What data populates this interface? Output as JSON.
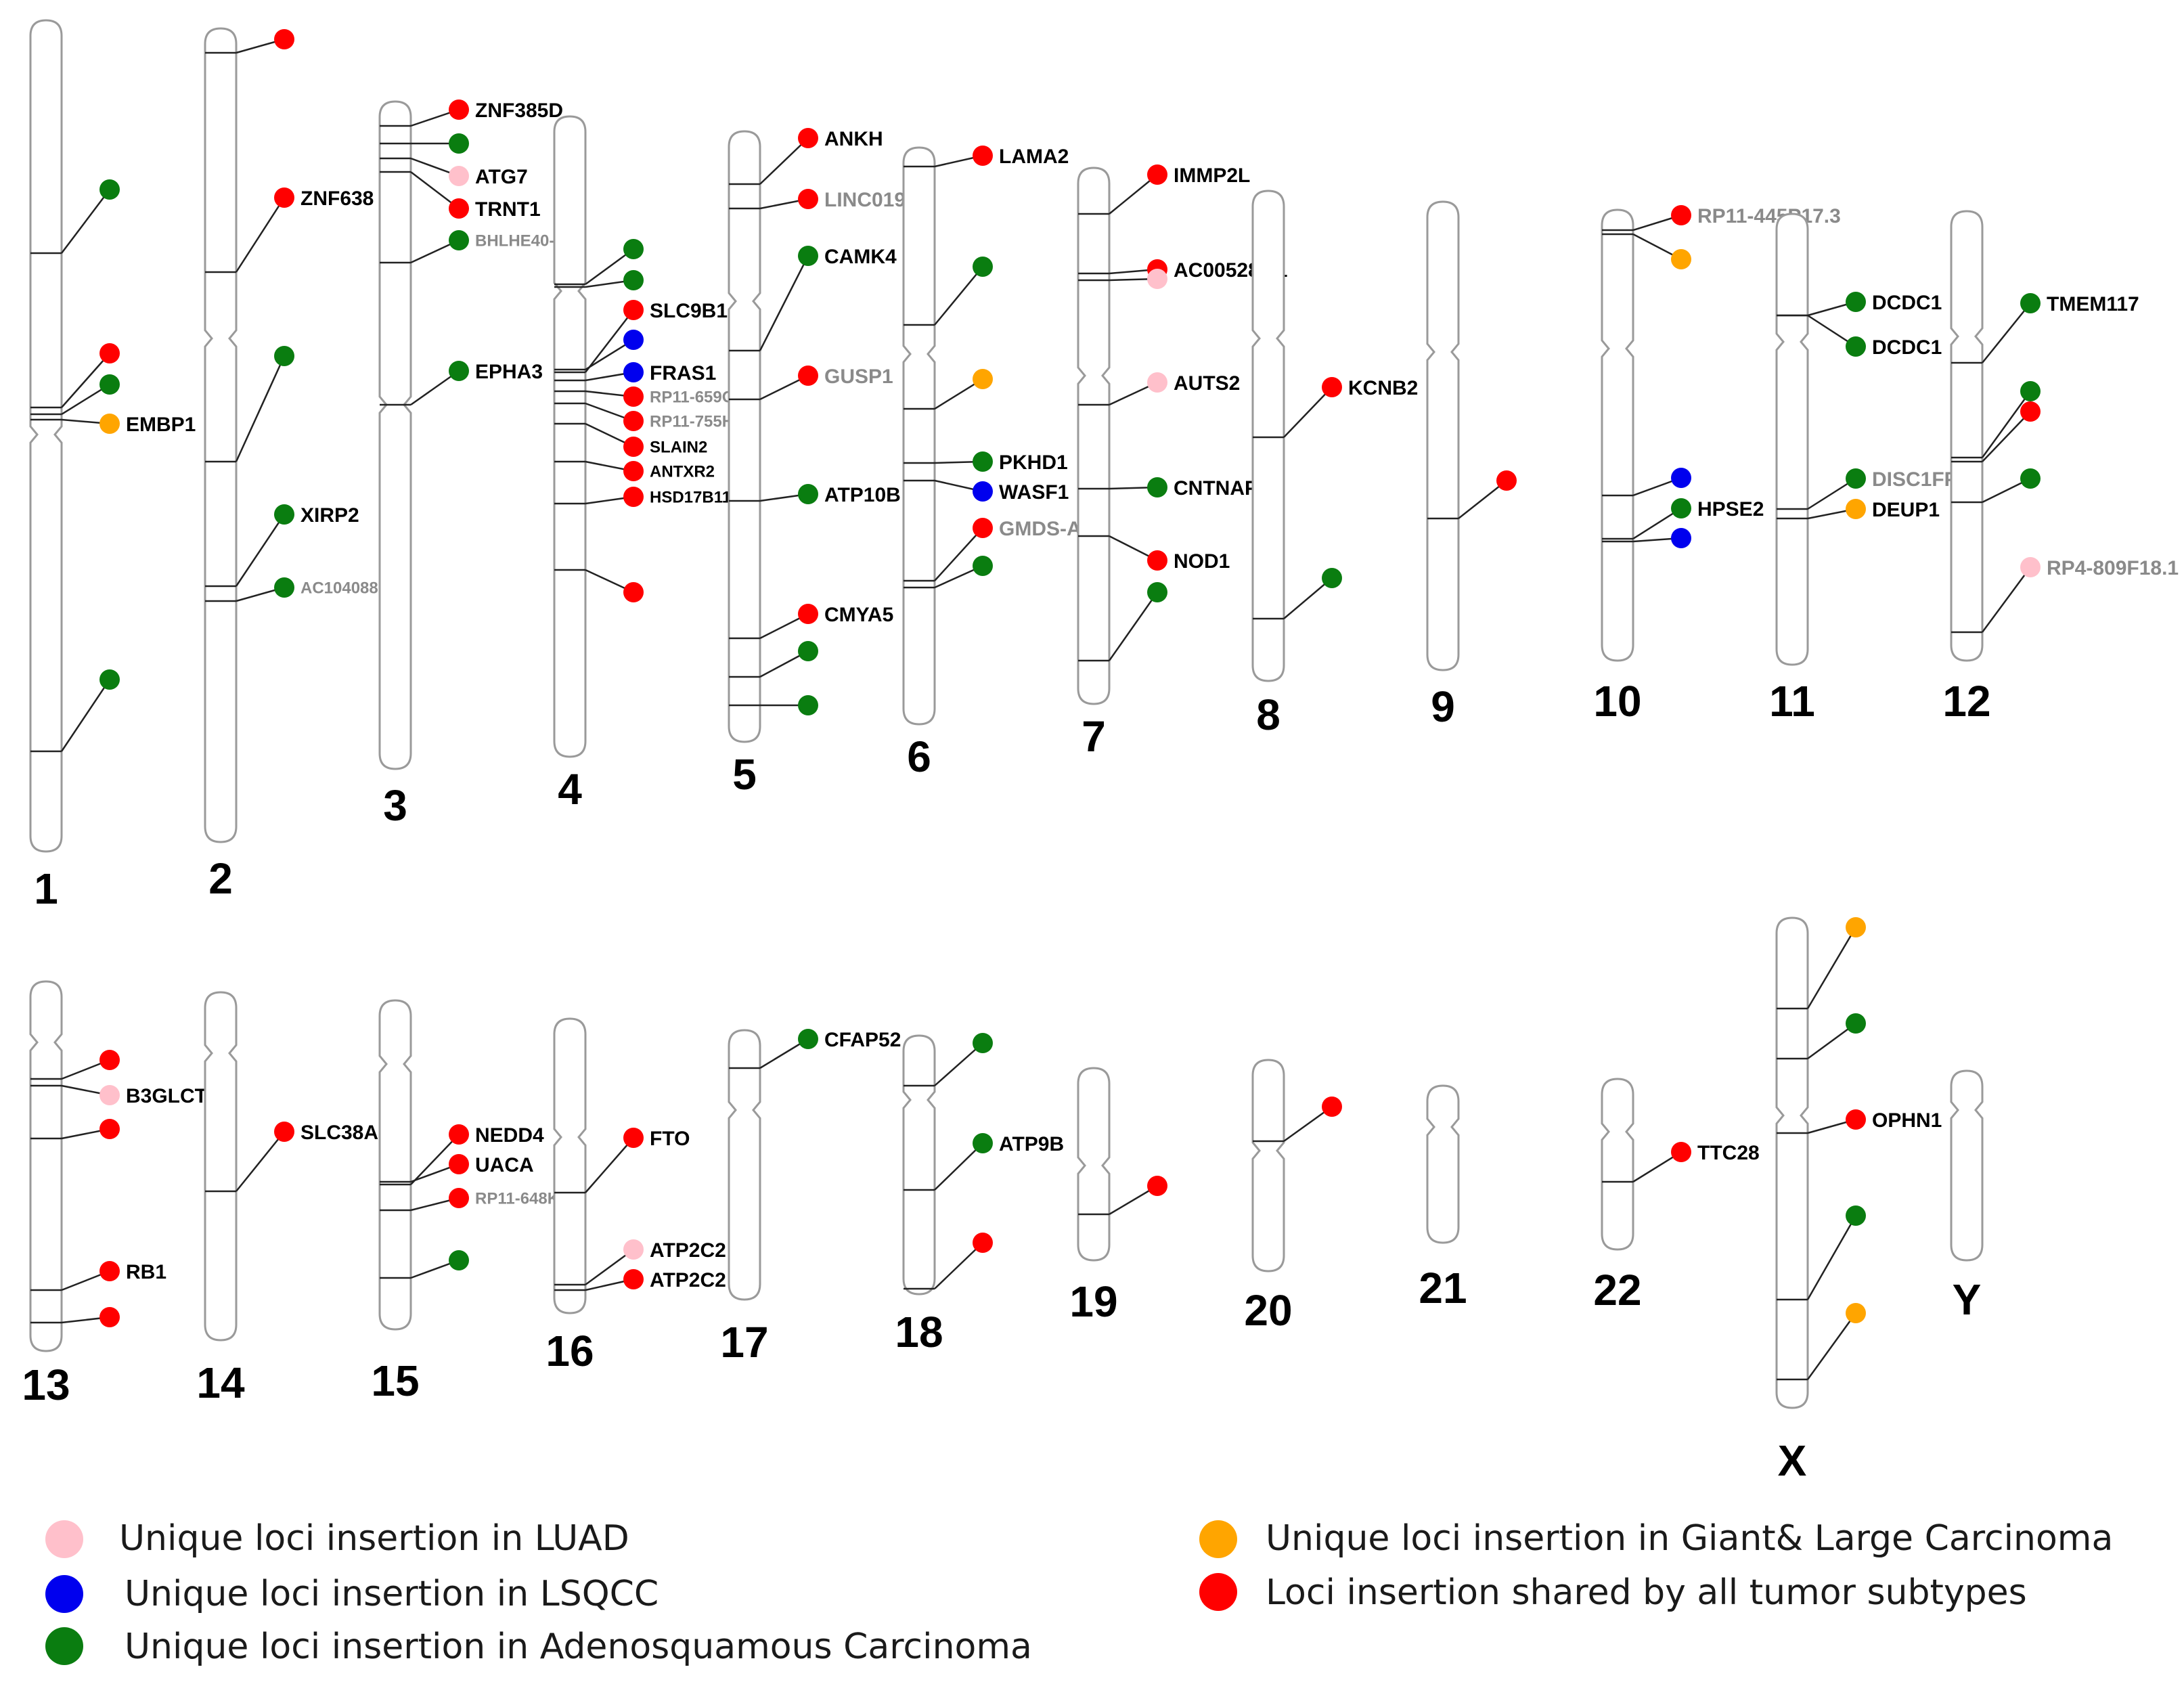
{
  "colors": {
    "luad": "#ffc0cb",
    "lsqcc": "#0000ee",
    "adeno": "#0a7d10",
    "giant": "#ffa500",
    "shared": "#ff0000",
    "outline": "#9a9a9a",
    "leader": "#222222",
    "label_dark": "#000000",
    "label_gray": "#8a8a8a"
  },
  "legend": [
    {
      "key": "luad",
      "label": "Unique loci insertion in LUAD"
    },
    {
      "key": "lsqcc",
      "label": "Unique loci insertion in LSQCC"
    },
    {
      "key": "adeno",
      "label": "Unique loci insertion in Adenosquamous Carcinoma"
    },
    {
      "key": "giant",
      "label": "Unique loci insertion in Giant& Large Carcinoma"
    },
    {
      "key": "shared",
      "label": "Loci insertion shared by all tumor subtypes"
    }
  ],
  "chromosomes": [
    {
      "name": "1",
      "loci": [
        {
          "type": "adeno",
          "label": ""
        },
        {
          "type": "shared",
          "label": ""
        },
        {
          "type": "adeno",
          "label": ""
        },
        {
          "type": "giant",
          "label": "EMBP1"
        },
        {
          "type": "adeno",
          "label": ""
        }
      ]
    },
    {
      "name": "2",
      "loci": [
        {
          "type": "shared",
          "label": ""
        },
        {
          "type": "shared",
          "label": "ZNF638"
        },
        {
          "type": "adeno",
          "label": ""
        },
        {
          "type": "adeno",
          "label": "XIRP2"
        },
        {
          "type": "adeno",
          "label": "AC104088.1"
        }
      ]
    },
    {
      "name": "3",
      "loci": [
        {
          "type": "shared",
          "label": "ZNF385D"
        },
        {
          "type": "adeno",
          "label": ""
        },
        {
          "type": "luad",
          "label": "ATG7"
        },
        {
          "type": "shared",
          "label": "TRNT1"
        },
        {
          "type": "adeno",
          "label": "BHLHE40-AS1"
        },
        {
          "type": "adeno",
          "label": "EPHA3"
        }
      ]
    },
    {
      "name": "4",
      "loci": [
        {
          "type": "adeno",
          "label": ""
        },
        {
          "type": "adeno",
          "label": ""
        },
        {
          "type": "shared",
          "label": "SLC9B1"
        },
        {
          "type": "lsqcc",
          "label": ""
        },
        {
          "type": "lsqcc",
          "label": "FRAS1"
        },
        {
          "type": "shared",
          "label": "RP11-659O2.1"
        },
        {
          "type": "shared",
          "label": "RP11-755H9.2"
        },
        {
          "type": "shared",
          "label": "SLAIN2"
        },
        {
          "type": "shared",
          "label": "ANTXR2"
        },
        {
          "type": "shared",
          "label": "HSD17B11"
        },
        {
          "type": "shared",
          "label": ""
        }
      ]
    },
    {
      "name": "5",
      "loci": [
        {
          "type": "shared",
          "label": "ANKH"
        },
        {
          "type": "shared",
          "label": "LINC01933"
        },
        {
          "type": "adeno",
          "label": "CAMK4"
        },
        {
          "type": "shared",
          "label": "GUSP1"
        },
        {
          "type": "adeno",
          "label": "ATP10B"
        },
        {
          "type": "shared",
          "label": "CMYA5"
        },
        {
          "type": "adeno",
          "label": ""
        },
        {
          "type": "adeno",
          "label": ""
        }
      ]
    },
    {
      "name": "6",
      "loci": [
        {
          "type": "shared",
          "label": "LAMA2"
        },
        {
          "type": "adeno",
          "label": ""
        },
        {
          "type": "giant",
          "label": ""
        },
        {
          "type": "adeno",
          "label": "PKHD1"
        },
        {
          "type": "lsqcc",
          "label": "WASF1"
        },
        {
          "type": "shared",
          "label": "GMDS-AS1"
        },
        {
          "type": "adeno",
          "label": ""
        }
      ]
    },
    {
      "name": "7",
      "loci": [
        {
          "type": "shared",
          "label": "IMMP2L"
        },
        {
          "type": "shared",
          "label": "AC005281.1"
        },
        {
          "type": "luad",
          "label": ""
        },
        {
          "type": "luad",
          "label": "AUTS2"
        },
        {
          "type": "adeno",
          "label": "CNTNAP2"
        },
        {
          "type": "shared",
          "label": "NOD1"
        },
        {
          "type": "adeno",
          "label": ""
        }
      ]
    },
    {
      "name": "8",
      "loci": [
        {
          "type": "shared",
          "label": "KCNB2"
        },
        {
          "type": "adeno",
          "label": ""
        }
      ]
    },
    {
      "name": "9",
      "loci": [
        {
          "type": "shared",
          "label": ""
        }
      ]
    },
    {
      "name": "10",
      "loci": [
        {
          "type": "shared",
          "label": "RP11-445P17.3"
        },
        {
          "type": "giant",
          "label": ""
        },
        {
          "type": "lsqcc",
          "label": ""
        },
        {
          "type": "adeno",
          "label": "HPSE2"
        },
        {
          "type": "lsqcc",
          "label": ""
        }
      ]
    },
    {
      "name": "11",
      "loci": [
        {
          "type": "adeno",
          "label": "DCDC1"
        },
        {
          "type": "adeno",
          "label": "DCDC1"
        },
        {
          "type": "adeno",
          "label": "DISC1FP1"
        },
        {
          "type": "giant",
          "label": "DEUP1"
        }
      ]
    },
    {
      "name": "12",
      "loci": [
        {
          "type": "adeno",
          "label": "TMEM117"
        },
        {
          "type": "adeno",
          "label": ""
        },
        {
          "type": "shared",
          "label": ""
        },
        {
          "type": "adeno",
          "label": ""
        },
        {
          "type": "luad",
          "label": "RP4-809F18.1"
        }
      ]
    },
    {
      "name": "13",
      "loci": [
        {
          "type": "shared",
          "label": ""
        },
        {
          "type": "luad",
          "label": "B3GLCT"
        },
        {
          "type": "shared",
          "label": ""
        },
        {
          "type": "shared",
          "label": "RB1"
        },
        {
          "type": "shared",
          "label": ""
        }
      ]
    },
    {
      "name": "14",
      "loci": [
        {
          "type": "shared",
          "label": "SLC38A6"
        }
      ]
    },
    {
      "name": "15",
      "loci": [
        {
          "type": "shared",
          "label": "NEDD4"
        },
        {
          "type": "shared",
          "label": "UACA"
        },
        {
          "type": "shared",
          "label": "RP11-648K4.2"
        },
        {
          "type": "adeno",
          "label": ""
        }
      ]
    },
    {
      "name": "16",
      "loci": [
        {
          "type": "shared",
          "label": "FTO"
        },
        {
          "type": "luad",
          "label": "ATP2C2"
        },
        {
          "type": "shared",
          "label": "ATP2C2"
        }
      ]
    },
    {
      "name": "17",
      "loci": [
        {
          "type": "adeno",
          "label": "CFAP52"
        }
      ]
    },
    {
      "name": "18",
      "loci": [
        {
          "type": "adeno",
          "label": ""
        },
        {
          "type": "adeno",
          "label": "ATP9B"
        },
        {
          "type": "shared",
          "label": ""
        }
      ]
    },
    {
      "name": "19",
      "loci": [
        {
          "type": "shared",
          "label": ""
        }
      ]
    },
    {
      "name": "20",
      "loci": [
        {
          "type": "shared",
          "label": ""
        }
      ]
    },
    {
      "name": "21",
      "loci": []
    },
    {
      "name": "22",
      "loci": [
        {
          "type": "shared",
          "label": "TTC28"
        }
      ]
    },
    {
      "name": "X",
      "loci": [
        {
          "type": "giant",
          "label": ""
        },
        {
          "type": "adeno",
          "label": ""
        },
        {
          "type": "shared",
          "label": "OPHN1"
        },
        {
          "type": "adeno",
          "label": ""
        },
        {
          "type": "giant",
          "label": ""
        }
      ]
    },
    {
      "name": "Y",
      "loci": []
    }
  ]
}
